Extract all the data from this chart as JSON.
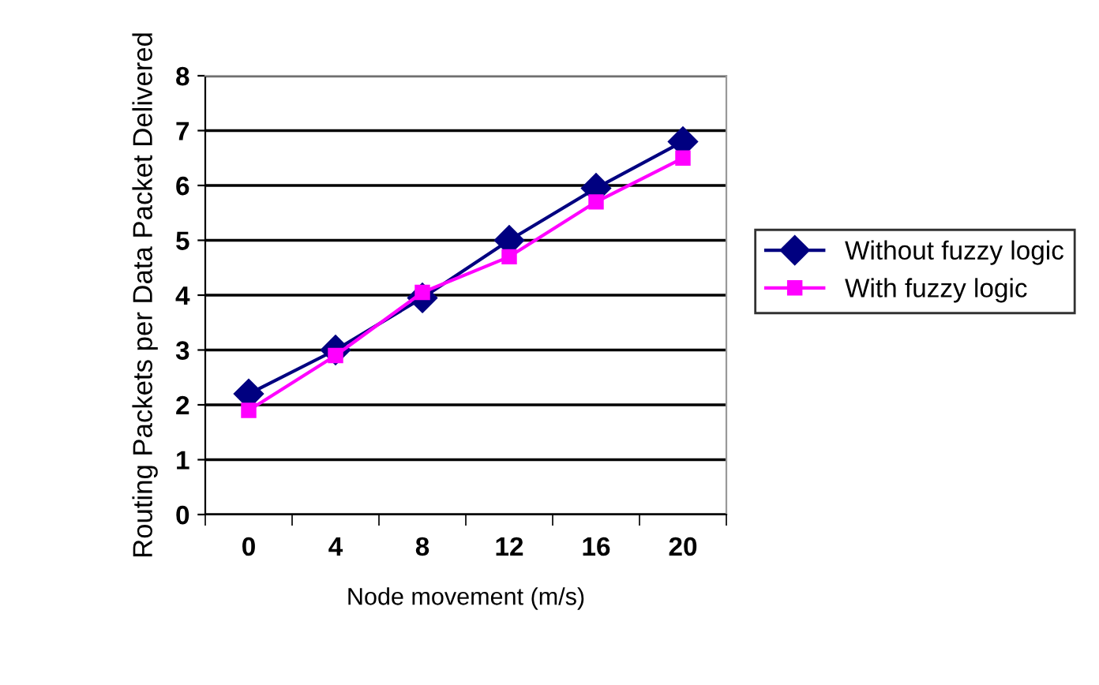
{
  "chart_data": {
    "type": "line",
    "xlabel": "Node movement (m/s)",
    "ylabel": "Routing Packets per Data Packet Delivered",
    "categories": [
      "0",
      "4",
      "8",
      "12",
      "16",
      "20"
    ],
    "series": [
      {
        "name": "Without fuzzy logic",
        "color": "#000080",
        "marker": "diamond",
        "values": [
          2.2,
          3.0,
          3.95,
          5.0,
          5.95,
          6.8
        ]
      },
      {
        "name": "With fuzzy logic",
        "color": "#ff00ff",
        "marker": "square",
        "values": [
          1.9,
          2.9,
          4.05,
          4.7,
          5.7,
          6.5
        ]
      }
    ],
    "ylim": [
      0,
      8
    ],
    "yticks": [
      0,
      1,
      2,
      3,
      4,
      5,
      6,
      7,
      8
    ],
    "grid": "y",
    "legend": "right"
  }
}
